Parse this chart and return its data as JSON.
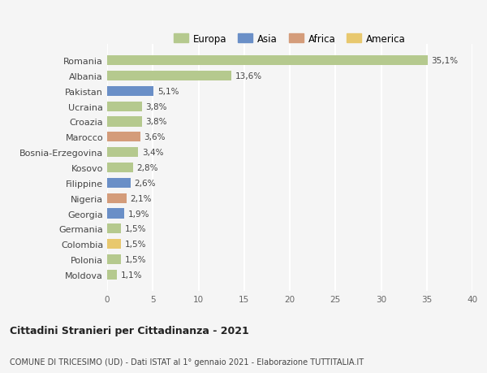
{
  "categories": [
    "Romania",
    "Albania",
    "Pakistan",
    "Ucraina",
    "Croazia",
    "Marocco",
    "Bosnia-Erzegovina",
    "Kosovo",
    "Filippine",
    "Nigeria",
    "Georgia",
    "Germania",
    "Colombia",
    "Polonia",
    "Moldova"
  ],
  "values": [
    35.1,
    13.6,
    5.1,
    3.8,
    3.8,
    3.6,
    3.4,
    2.8,
    2.6,
    2.1,
    1.9,
    1.5,
    1.5,
    1.5,
    1.1
  ],
  "labels": [
    "35,1%",
    "13,6%",
    "5,1%",
    "3,8%",
    "3,8%",
    "3,6%",
    "3,4%",
    "2,8%",
    "2,6%",
    "2,1%",
    "1,9%",
    "1,5%",
    "1,5%",
    "1,5%",
    "1,1%"
  ],
  "continents": [
    "Europa",
    "Europa",
    "Asia",
    "Europa",
    "Europa",
    "Africa",
    "Europa",
    "Europa",
    "Asia",
    "Africa",
    "Asia",
    "Europa",
    "America",
    "Europa",
    "Europa"
  ],
  "colors": {
    "Europa": "#b5c98e",
    "Asia": "#6a8fc7",
    "Africa": "#d49c7a",
    "America": "#e8c86e"
  },
  "legend_order": [
    "Europa",
    "Asia",
    "Africa",
    "America"
  ],
  "legend_colors": [
    "#b5c98e",
    "#6a8fc7",
    "#d49c7a",
    "#e8c86e"
  ],
  "title1": "Cittadini Stranieri per Cittadinanza - 2021",
  "title2": "COMUNE DI TRICESIMO (UD) - Dati ISTAT al 1° gennaio 2021 - Elaborazione TUTTITALIA.IT",
  "xlim": [
    0,
    40
  ],
  "xticks": [
    0,
    5,
    10,
    15,
    20,
    25,
    30,
    35,
    40
  ],
  "background_color": "#f5f5f5",
  "grid_color": "#ffffff",
  "bar_height": 0.65
}
